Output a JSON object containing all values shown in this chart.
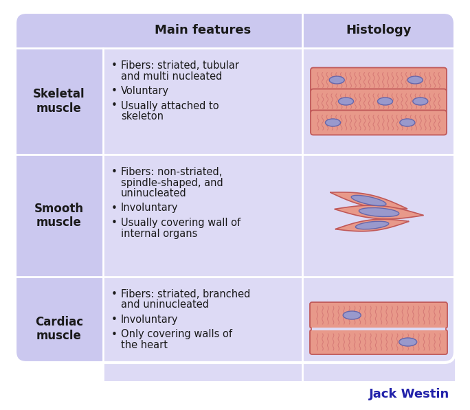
{
  "background_color": "#ffffff",
  "table_bg": "#cbc8ef",
  "header_bg": "#cbc8ef",
  "cell_bg": "#dddaf5",
  "border_color": "#ffffff",
  "header_text_color": "#1a1a1a",
  "row_label_color": "#1a1a1a",
  "body_text_color": "#1a1a1a",
  "signature_color": "#2222aa",
  "muscle_fill": "#e8998a",
  "muscle_stroke": "#c05858",
  "muscle_line": "#d07070",
  "nucleus_fill": "#9999cc",
  "nucleus_stroke": "#6666aa",
  "headers": [
    "Main features",
    "Histology"
  ],
  "rows": [
    {
      "label": "Skeletal\nmuscle",
      "features": [
        "Fibers: striated, tubular\nand multi nucleated",
        "Voluntary",
        "Usually attached to\nskeleton"
      ]
    },
    {
      "label": "Smooth\nmuscle",
      "features": [
        "Fibers: non-striated,\nspindle-shaped, and\nuninucleated",
        "Involuntary",
        "Usually covering wall of\ninternal organs"
      ]
    },
    {
      "label": "Cardiac\nmuscle",
      "features": [
        "Fibers: striated, branched\nand uninucleated",
        "Involuntary",
        "Only covering walls of\nthe heart"
      ]
    }
  ],
  "figsize": [
    6.84,
    5.97
  ],
  "dpi": 100
}
